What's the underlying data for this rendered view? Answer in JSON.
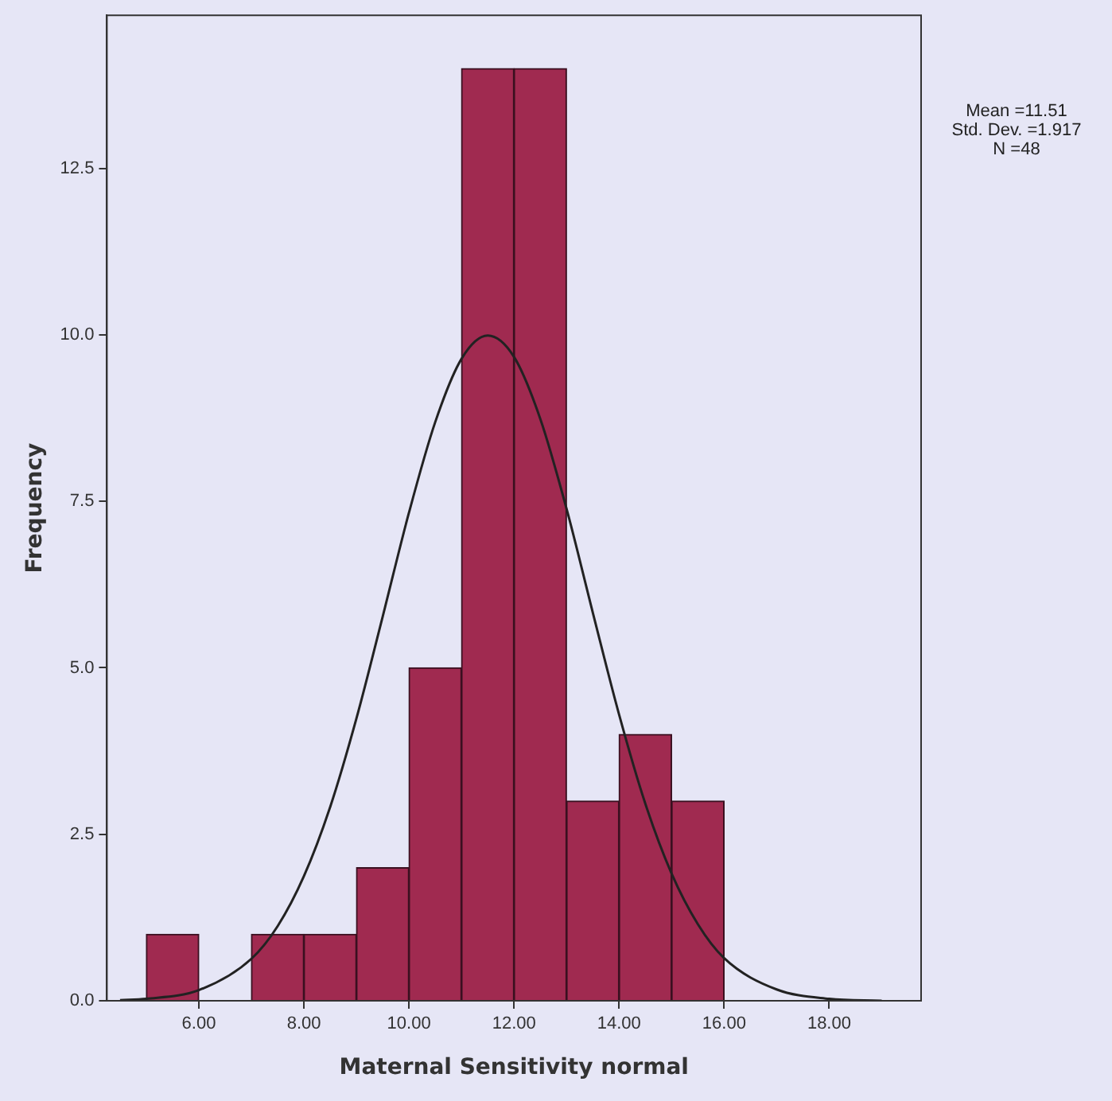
{
  "chart_data": {
    "type": "histogram",
    "xlabel": "Maternal Sensitivity normal",
    "ylabel": "Frequency",
    "bins": [
      5,
      6,
      7,
      8,
      9,
      10,
      11,
      12,
      13,
      14,
      15,
      16
    ],
    "values": [
      1,
      0,
      1,
      1,
      2,
      5,
      14,
      14,
      3,
      4,
      3
    ],
    "color": "#a02a50",
    "series": [
      {
        "type": "line",
        "color": "#222222",
        "x": [
          4.5,
          5,
          6,
          7,
          7.5,
          8,
          8.5,
          9,
          9.5,
          10,
          10.5,
          11,
          11.5,
          12,
          12.5,
          13,
          13.5,
          14,
          14.5,
          15,
          15.5,
          16,
          17,
          18,
          19
        ],
        "values": [
          0.01,
          0.03,
          0.16,
          0.63,
          1.12,
          1.87,
          2.91,
          4.24,
          5.77,
          7.33,
          8.69,
          9.64,
          9.99,
          9.67,
          8.74,
          7.39,
          5.83,
          4.3,
          2.96,
          1.91,
          1.15,
          0.64,
          0.17,
          0.03,
          0.0
        ]
      }
    ],
    "marker": "none",
    "line_style": "solid",
    "grid": false,
    "legend": false,
    "xlim": [
      4.25,
      19.75
    ],
    "xticks": [
      {
        "value": 6,
        "label": "6.00"
      },
      {
        "value": 8,
        "label": "8.00"
      },
      {
        "value": 10,
        "label": "10.00"
      },
      {
        "value": 12,
        "label": "12.00"
      },
      {
        "value": 14,
        "label": "14.00"
      },
      {
        "value": 16,
        "label": "16.00"
      },
      {
        "value": 18,
        "label": "18.00"
      }
    ],
    "ylim": [
      0,
      14.8
    ],
    "yticks": [
      {
        "value": 0,
        "label": "0.0"
      },
      {
        "value": 2.5,
        "label": "2.5"
      },
      {
        "value": 5,
        "label": "5.0"
      },
      {
        "value": 7.5,
        "label": "7.5"
      },
      {
        "value": 10,
        "label": "10.0"
      },
      {
        "value": 12.5,
        "label": "12.5"
      }
    ],
    "annotations": [
      "Mean =11.51",
      "Std. Dev. =1.917",
      "N =48"
    ]
  }
}
